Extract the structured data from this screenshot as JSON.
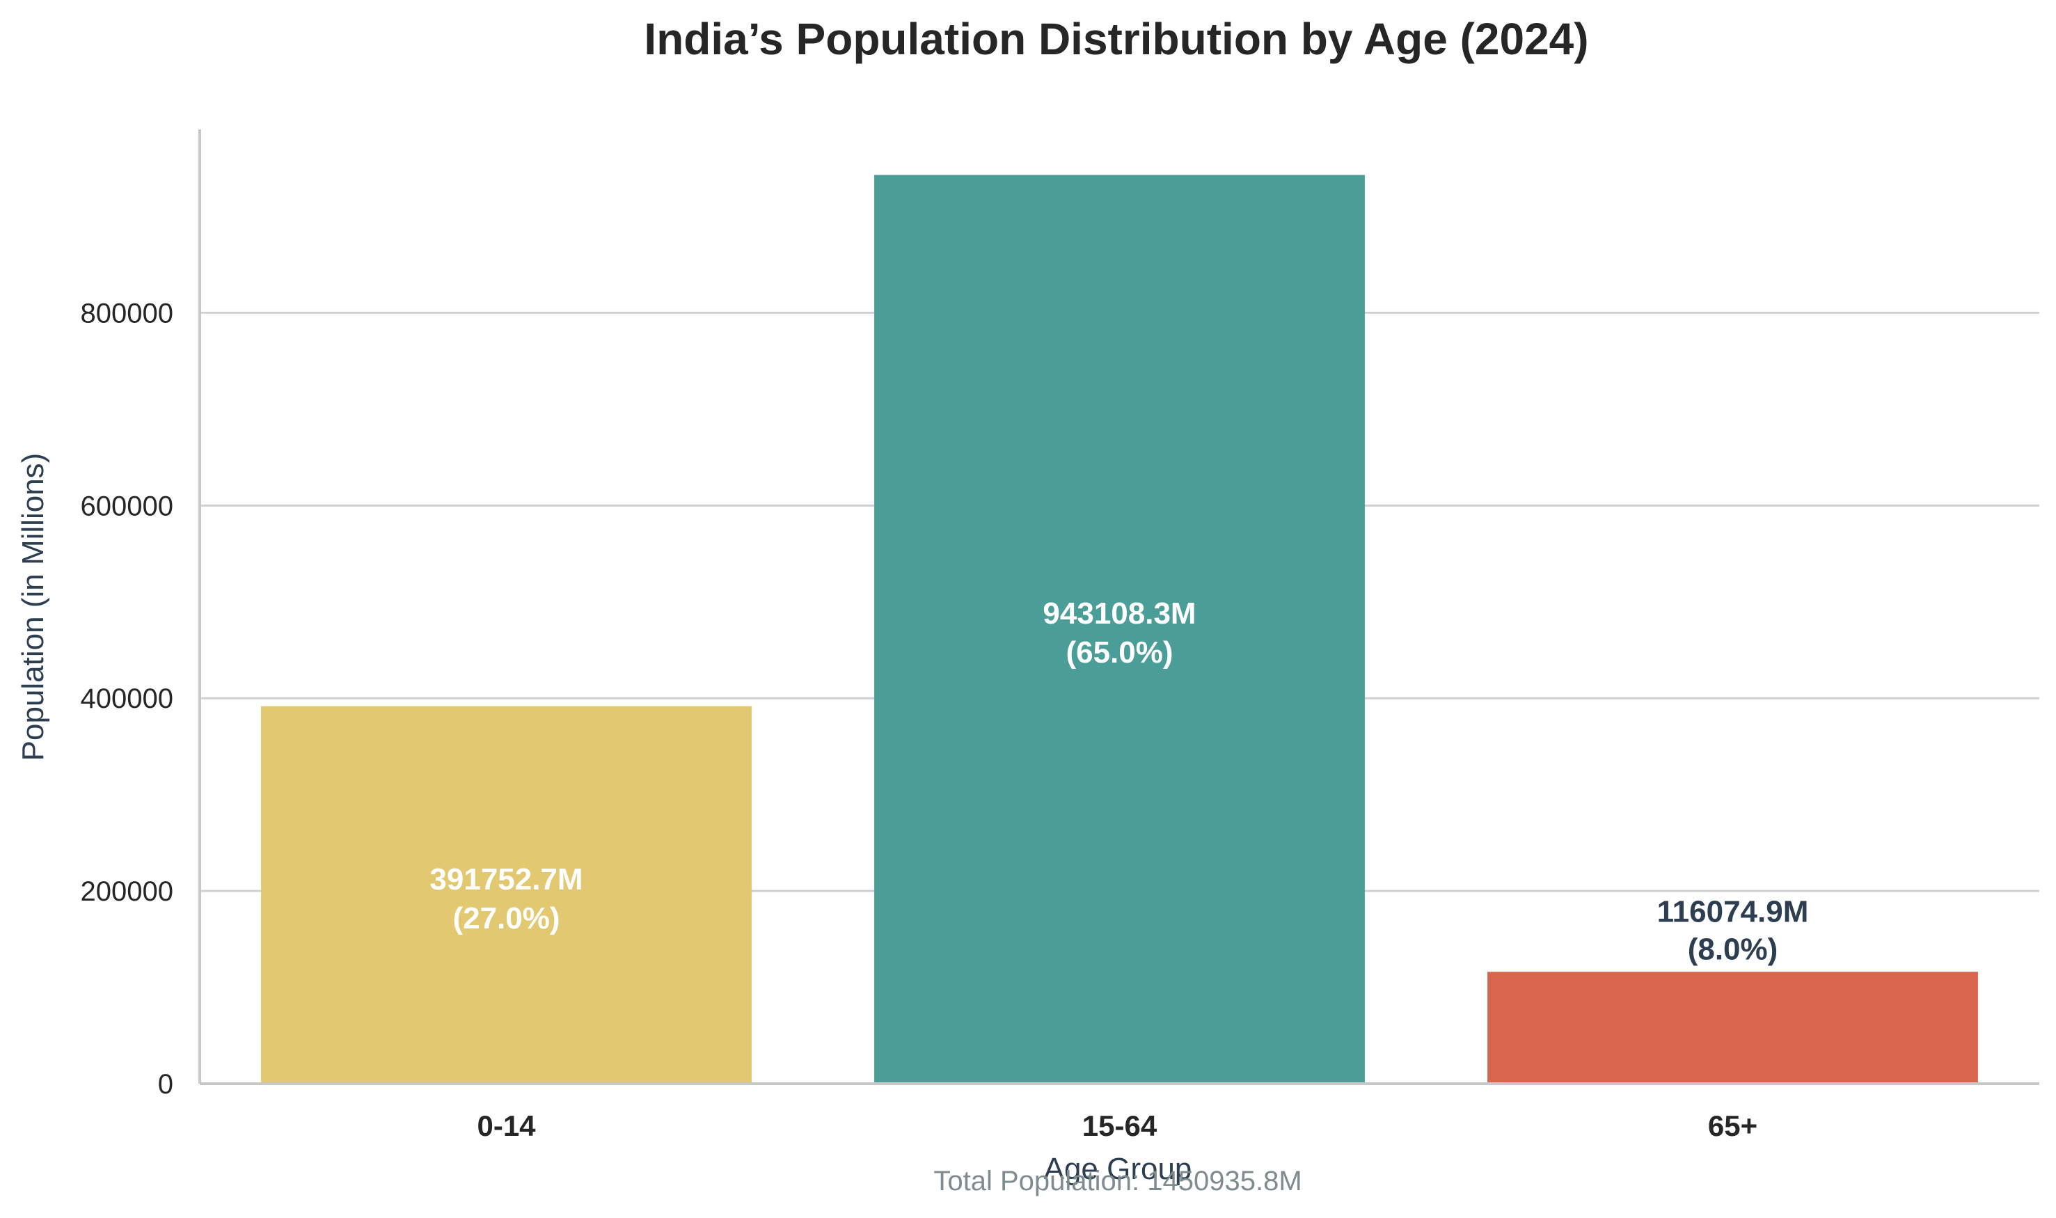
{
  "chart_data": {
    "type": "bar",
    "title": "India’s Population Distribution by Age (2024)",
    "xlabel": "Age Group",
    "ylabel": "Population (in Millions)",
    "categories": [
      "0-14",
      "15-64",
      "65+"
    ],
    "values": [
      391752.7,
      943108.3,
      116074.9
    ],
    "percentages": [
      "27.0%",
      "65.0%",
      "8.0%"
    ],
    "value_labels": [
      "391752.7M",
      "943108.3M",
      "116074.9M"
    ],
    "percent_labels": [
      "(27.0%)",
      "(65.0%)",
      "(8.0%)"
    ],
    "colors": [
      "#e2c971",
      "#4a9e97",
      "#d9654f"
    ],
    "label_colors": [
      "#ffffff",
      "#ffffff",
      "#2c3e50"
    ],
    "label_position": [
      "inside",
      "inside",
      "above"
    ],
    "yticks": [
      0,
      200000,
      400000,
      600000,
      800000
    ],
    "ytick_labels": [
      "0",
      "200000",
      "400000",
      "600000",
      "800000"
    ],
    "ylim": [
      0,
      990269.7
    ],
    "grid": true,
    "footnote": "Total Population: 1450935.8M"
  },
  "colors": {
    "grid": "#d0d0d0",
    "axis": "#c8c8c8",
    "title": "#262626",
    "axis_title": "#2c3e50",
    "footnote": "#7f8c8d"
  }
}
